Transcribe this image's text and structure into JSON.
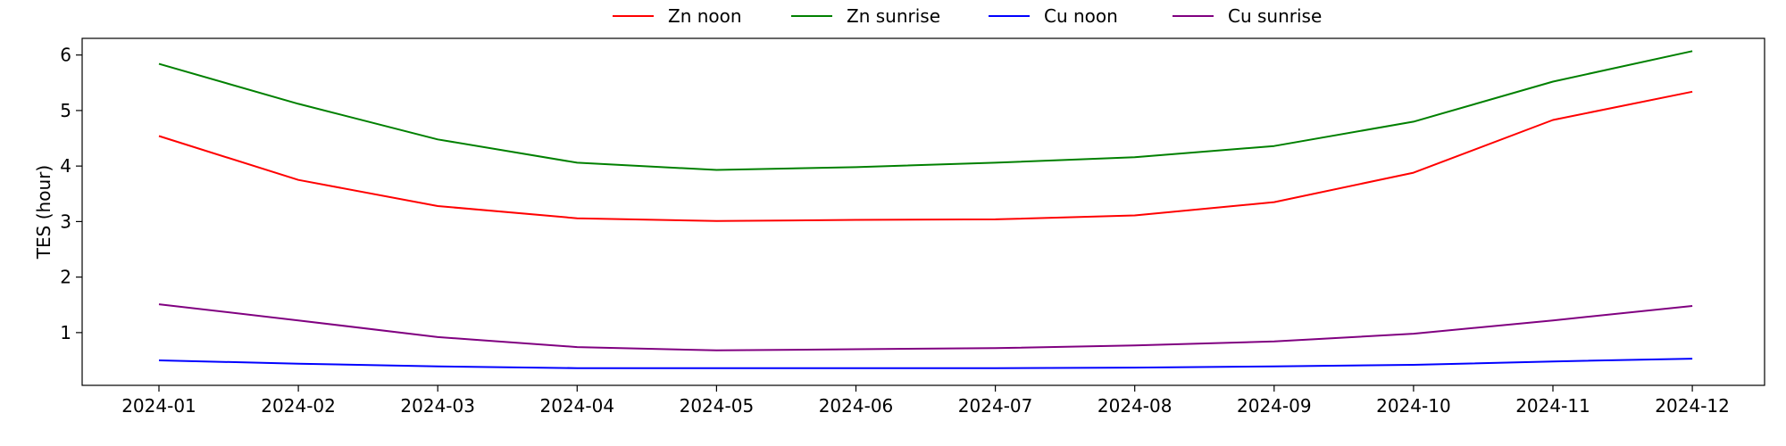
{
  "chart_data": {
    "type": "line",
    "ylabel": "TES (hour)",
    "xlabel": "",
    "x": [
      "2024-01",
      "2024-02",
      "2024-03",
      "2024-04",
      "2024-05",
      "2024-06",
      "2024-07",
      "2024-08",
      "2024-09",
      "2024-10",
      "2024-11",
      "2024-12"
    ],
    "y_ticks": [
      1,
      2,
      3,
      4,
      5,
      6
    ],
    "ylim": [
      0.05,
      6.3
    ],
    "legend_position": "top-center",
    "grid": false,
    "series": [
      {
        "name": "Zn noon",
        "color": "#ff0000",
        "values": [
          4.54,
          3.75,
          3.28,
          3.06,
          3.01,
          3.03,
          3.04,
          3.11,
          3.35,
          3.88,
          4.83,
          5.34
        ]
      },
      {
        "name": "Zn sunrise",
        "color": "#008000",
        "values": [
          5.84,
          5.12,
          4.48,
          4.06,
          3.93,
          3.98,
          4.06,
          4.16,
          4.36,
          4.8,
          5.52,
          6.07
        ]
      },
      {
        "name": "Cu noon",
        "color": "#0000ff",
        "values": [
          0.5,
          0.44,
          0.39,
          0.36,
          0.36,
          0.36,
          0.36,
          0.37,
          0.39,
          0.42,
          0.48,
          0.53
        ]
      },
      {
        "name": "Cu sunrise",
        "color": "#800080",
        "values": [
          1.51,
          1.22,
          0.92,
          0.74,
          0.68,
          0.7,
          0.72,
          0.77,
          0.84,
          0.98,
          1.22,
          1.48
        ]
      }
    ]
  }
}
